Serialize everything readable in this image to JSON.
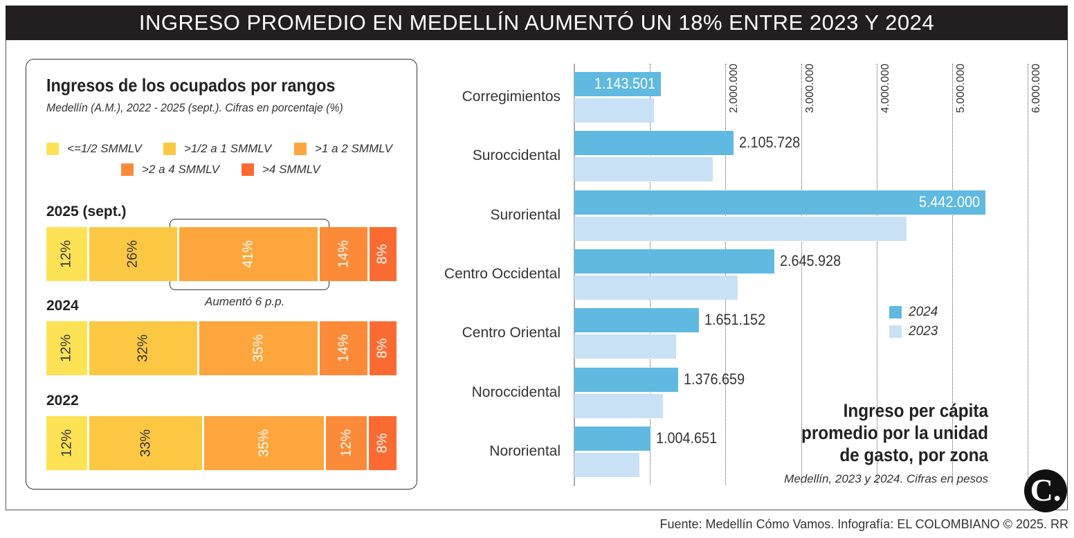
{
  "title": "INGRESO PROMEDIO EN MEDELLÍN AUMENTÓ UN 18% ENTRE 2023 Y 2024",
  "source": "Fuente: Medellín Cómo Vamos. Infografía: EL COLOMBIANO © 2025. RR",
  "logo": "C.",
  "chart_data": [
    {
      "type": "bar",
      "orientation": "horizontal",
      "stacked": true,
      "title": "Ingresos de los ocupados por rangos",
      "subtitle": "Medellín (A.M.), 2022 - 2025 (sept.). Cifras en porcentaje (%)",
      "legend_position": "top",
      "series": [
        {
          "name": "<=1/2 SMMLV",
          "color": "#fde255"
        },
        {
          "name": ">1/2 a 1 SMMLV",
          "color": "#fcc843"
        },
        {
          "name": ">1 a 2 SMMLV",
          "color": "#fca63d"
        },
        {
          "name": ">2 a 4 SMMLV",
          "color": "#fb8b39"
        },
        {
          "name": ">4 SMMLV",
          "color": "#fb6b31"
        }
      ],
      "categories": [
        "2025 (sept.)",
        "2024",
        "2022"
      ],
      "values": [
        [
          12,
          26,
          41,
          14,
          8
        ],
        [
          12,
          32,
          35,
          14,
          8
        ],
        [
          12,
          33,
          35,
          12,
          8
        ]
      ],
      "labels": [
        [
          "12%",
          "26%",
          "41%",
          "14%",
          "8%"
        ],
        [
          "12%",
          "32%",
          "35%",
          "14%",
          "8%"
        ],
        [
          "12%",
          "33%",
          "35%",
          "12%",
          "8%"
        ]
      ],
      "annotation": "Aumentó 6 p.p."
    },
    {
      "type": "bar",
      "orientation": "horizontal",
      "title": "Ingreso per cápita promedio por la unidad de gasto, por zona",
      "subtitle": "Medellín, 2023 y 2024. Cifras en pesos",
      "categories": [
        "Corregimientos",
        "Suroccidental",
        "Suroriental",
        "Centro Occidental",
        "Centro Oriental",
        "Noroccidental",
        "Nororiental"
      ],
      "series": [
        {
          "name": "2024",
          "color": "#5fb9e1",
          "values": [
            1143501,
            2105728,
            5442000,
            2645928,
            1651152,
            1376659,
            1004651
          ],
          "labels": [
            "1.143.501",
            "2.105.728",
            "5.442.000",
            "2.645.928",
            "1.651.152",
            "1.376.659",
            "1.004.651"
          ]
        },
        {
          "name": "2023",
          "color": "#c9e1f4",
          "values": [
            1050000,
            1830000,
            4400000,
            2160000,
            1350000,
            1170000,
            860000
          ]
        }
      ],
      "xlim": [
        0,
        6000000
      ],
      "xticks": [
        1000000,
        2000000,
        3000000,
        4000000,
        5000000,
        6000000
      ],
      "xtick_labels": [
        "",
        "2.000.000",
        "3.000.000",
        "4.000.000",
        "5.000.000",
        "6.000.000"
      ],
      "grid": true,
      "legend_position": "right-middle"
    }
  ]
}
